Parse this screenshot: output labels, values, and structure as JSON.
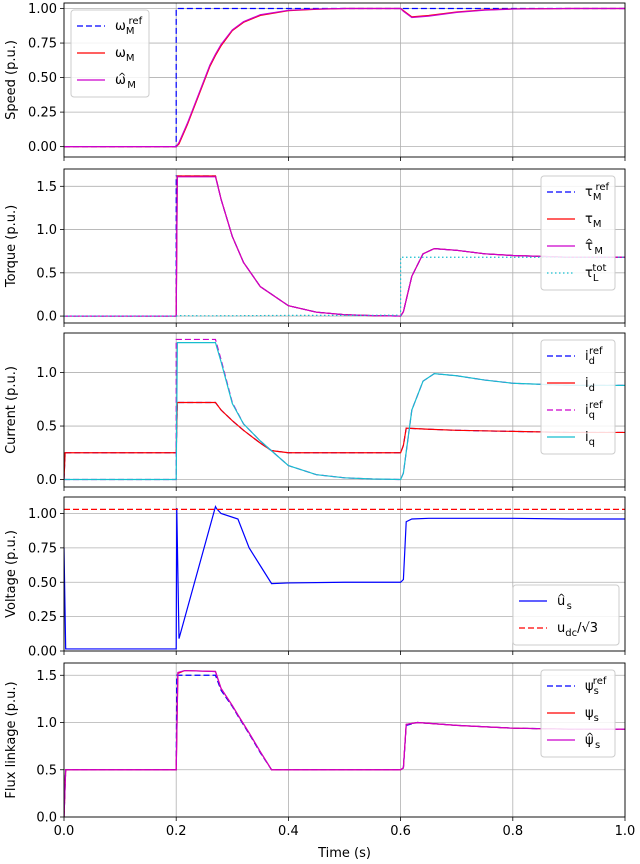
{
  "chart_data": [
    {
      "type": "line",
      "ylabel": "Speed (p.u.)",
      "xlim": [
        0,
        1
      ],
      "ylim": [
        -0.075,
        1.04
      ],
      "yticks": [
        "0.00",
        "0.25",
        "0.50",
        "0.75",
        "1.00"
      ],
      "ytick_values": [
        0,
        0.25,
        0.5,
        0.75,
        1.0
      ],
      "grid": true,
      "legend": "top-left",
      "series": [
        {
          "name": "ω_M^ref",
          "legend_main": "ω",
          "legend_sub": "M",
          "legend_sup": "ref",
          "hat": false,
          "color": "#0000ff",
          "dash": "dashed",
          "x": [
            0,
            0.2,
            0.2,
            1.0
          ],
          "y": [
            0,
            0,
            1,
            1
          ]
        },
        {
          "name": "ω_M",
          "legend_main": "ω",
          "legend_sub": "M",
          "legend_sup": "",
          "hat": false,
          "color": "#ff0000",
          "dash": "solid",
          "x": [
            0,
            0.2,
            0.205,
            0.22,
            0.24,
            0.26,
            0.27,
            0.28,
            0.3,
            0.32,
            0.35,
            0.4,
            0.45,
            0.5,
            0.55,
            0.6,
            0.605,
            0.62,
            0.65,
            0.7,
            0.75,
            0.8,
            0.9,
            1.0
          ],
          "y": [
            0,
            0,
            0.02,
            0.16,
            0.37,
            0.58,
            0.66,
            0.73,
            0.84,
            0.9,
            0.95,
            0.985,
            0.995,
            1.0,
            1.0,
            1.0,
            0.985,
            0.94,
            0.95,
            0.975,
            0.99,
            0.997,
            1.0,
            1.0
          ]
        },
        {
          "name": "ω̂_M",
          "legend_main": "ω",
          "legend_sub": "M",
          "legend_sup": "",
          "hat": true,
          "color": "#cc00cc",
          "dash": "solid",
          "x": [
            0,
            0.2,
            0.205,
            0.22,
            0.24,
            0.26,
            0.27,
            0.28,
            0.3,
            0.32,
            0.35,
            0.4,
            0.45,
            0.5,
            0.55,
            0.6,
            0.605,
            0.62,
            0.65,
            0.7,
            0.75,
            0.8,
            0.9,
            1.0
          ],
          "y": [
            0,
            0,
            0.03,
            0.17,
            0.38,
            0.59,
            0.67,
            0.74,
            0.845,
            0.905,
            0.955,
            0.987,
            0.996,
            1.0,
            1.0,
            1.0,
            0.98,
            0.935,
            0.945,
            0.972,
            0.988,
            0.996,
            1.0,
            1.0
          ]
        }
      ]
    },
    {
      "type": "line",
      "ylabel": "Torque (p.u.)",
      "xlim": [
        0,
        1
      ],
      "ylim": [
        -0.08,
        1.7
      ],
      "yticks": [
        "0.0",
        "0.5",
        "1.0",
        "1.5"
      ],
      "ytick_values": [
        0,
        0.5,
        1.0,
        1.5
      ],
      "grid": true,
      "legend": "top-right",
      "series": [
        {
          "name": "τ_M^ref",
          "legend_main": "τ",
          "legend_sub": "M",
          "legend_sup": "ref",
          "hat": false,
          "color": "#0000ff",
          "dash": "dashed",
          "x": [
            0,
            0.2,
            0.2,
            0.27,
            0.28,
            0.3,
            0.32,
            0.35,
            0.4,
            0.45,
            0.5,
            0.55,
            0.6,
            0.605,
            0.62,
            0.64,
            0.66,
            0.7,
            0.75,
            0.8,
            0.9,
            1.0
          ],
          "y": [
            0,
            0,
            1.62,
            1.62,
            1.35,
            0.92,
            0.62,
            0.34,
            0.12,
            0.045,
            0.016,
            0.005,
            0,
            0.05,
            0.46,
            0.72,
            0.78,
            0.76,
            0.72,
            0.7,
            0.68,
            0.68
          ]
        },
        {
          "name": "τ_M",
          "legend_main": "τ",
          "legend_sub": "M",
          "legend_sup": "",
          "hat": false,
          "color": "#ff0000",
          "dash": "solid",
          "x": [
            0,
            0.2,
            0.202,
            0.27,
            0.28,
            0.3,
            0.32,
            0.35,
            0.4,
            0.45,
            0.5,
            0.55,
            0.6,
            0.605,
            0.62,
            0.64,
            0.66,
            0.7,
            0.75,
            0.8,
            0.9,
            1.0
          ],
          "y": [
            0,
            0,
            1.62,
            1.62,
            1.35,
            0.92,
            0.62,
            0.34,
            0.12,
            0.045,
            0.016,
            0.005,
            0,
            0.05,
            0.46,
            0.72,
            0.78,
            0.76,
            0.72,
            0.7,
            0.68,
            0.68
          ]
        },
        {
          "name": "τ̂_M",
          "legend_main": "τ",
          "legend_sub": "M",
          "legend_sup": "",
          "hat": true,
          "color": "#cc00cc",
          "dash": "solid",
          "x": [
            0,
            0.2,
            0.202,
            0.27,
            0.28,
            0.3,
            0.32,
            0.35,
            0.4,
            0.45,
            0.5,
            0.55,
            0.6,
            0.605,
            0.62,
            0.64,
            0.66,
            0.7,
            0.75,
            0.8,
            0.9,
            1.0
          ],
          "y": [
            0,
            0,
            1.61,
            1.61,
            1.35,
            0.92,
            0.62,
            0.34,
            0.12,
            0.045,
            0.016,
            0.005,
            0,
            0.05,
            0.46,
            0.72,
            0.78,
            0.76,
            0.72,
            0.7,
            0.68,
            0.68
          ]
        },
        {
          "name": "τ_L^tot",
          "legend_main": "τ",
          "legend_sub": "L",
          "legend_sup": "tot",
          "hat": false,
          "color": "#17becf",
          "dash": "dotted",
          "x": [
            0,
            0.2,
            0.205,
            0.25,
            0.3,
            0.4,
            0.5,
            0.6,
            0.6,
            1.0
          ],
          "y": [
            0,
            0,
            0.005,
            0.003,
            0.004,
            0.008,
            0.008,
            0.01,
            0.68,
            0.68
          ]
        }
      ]
    },
    {
      "type": "line",
      "ylabel": "Current (p.u.)",
      "xlim": [
        0,
        1
      ],
      "ylim": [
        -0.07,
        1.37
      ],
      "yticks": [
        "0.0",
        "0.5",
        "1.0"
      ],
      "ytick_values": [
        0,
        0.5,
        1.0
      ],
      "grid": true,
      "legend": "top-right",
      "series": [
        {
          "name": "i_d^ref",
          "legend_main": "i",
          "legend_sub": "d",
          "legend_sup": "ref",
          "hat": false,
          "color": "#0000ff",
          "dash": "dashed",
          "x": [
            0,
            0.002,
            0.2,
            0.202,
            0.27,
            0.28,
            0.3,
            0.32,
            0.35,
            0.37,
            0.4,
            0.5,
            0.6,
            0.605,
            0.61,
            0.65,
            0.7,
            0.8,
            0.9,
            1.0
          ],
          "y": [
            0,
            0.25,
            0.25,
            0.72,
            0.72,
            0.65,
            0.55,
            0.46,
            0.34,
            0.27,
            0.25,
            0.25,
            0.25,
            0.32,
            0.48,
            0.47,
            0.46,
            0.45,
            0.44,
            0.44
          ]
        },
        {
          "name": "i_d",
          "legend_main": "i",
          "legend_sub": "d",
          "legend_sup": "",
          "hat": false,
          "color": "#ff0000",
          "dash": "solid",
          "x": [
            0,
            0.002,
            0.2,
            0.202,
            0.27,
            0.28,
            0.3,
            0.32,
            0.35,
            0.37,
            0.4,
            0.5,
            0.6,
            0.605,
            0.61,
            0.65,
            0.7,
            0.8,
            0.9,
            1.0
          ],
          "y": [
            0,
            0.25,
            0.25,
            0.72,
            0.72,
            0.65,
            0.55,
            0.46,
            0.34,
            0.27,
            0.25,
            0.25,
            0.25,
            0.32,
            0.48,
            0.47,
            0.46,
            0.45,
            0.44,
            0.44
          ]
        },
        {
          "name": "i_q^ref",
          "legend_main": "i",
          "legend_sub": "q",
          "legend_sup": "ref",
          "hat": false,
          "color": "#cc00cc",
          "dash": "dashed",
          "x": [
            0,
            0.2,
            0.2,
            0.27,
            0.28,
            0.3,
            0.32,
            0.35,
            0.4,
            0.45,
            0.5,
            0.55,
            0.6,
            0.605,
            0.62,
            0.64,
            0.66,
            0.7,
            0.75,
            0.8,
            0.9,
            1.0
          ],
          "y": [
            0,
            0,
            1.31,
            1.31,
            1.12,
            0.72,
            0.52,
            0.36,
            0.13,
            0.045,
            0.016,
            0.005,
            0,
            0.06,
            0.65,
            0.92,
            0.99,
            0.97,
            0.93,
            0.9,
            0.88,
            0.88
          ]
        },
        {
          "name": "i_q",
          "legend_main": "i",
          "legend_sub": "q",
          "legend_sup": "",
          "hat": false,
          "color": "#17becf",
          "dash": "solid",
          "x": [
            0,
            0.2,
            0.202,
            0.27,
            0.28,
            0.3,
            0.32,
            0.35,
            0.4,
            0.45,
            0.5,
            0.55,
            0.6,
            0.605,
            0.62,
            0.64,
            0.66,
            0.7,
            0.75,
            0.8,
            0.9,
            1.0
          ],
          "y": [
            0,
            0,
            1.28,
            1.28,
            1.1,
            0.71,
            0.52,
            0.36,
            0.13,
            0.045,
            0.016,
            0.005,
            0,
            0.06,
            0.65,
            0.92,
            0.99,
            0.97,
            0.93,
            0.9,
            0.88,
            0.88
          ]
        }
      ]
    },
    {
      "type": "line",
      "ylabel": "Voltage (p.u.)",
      "xlim": [
        0,
        1
      ],
      "ylim": [
        0,
        1.12
      ],
      "yticks": [
        "0.00",
        "0.25",
        "0.50",
        "0.75",
        "1.00"
      ],
      "ytick_values": [
        0,
        0.25,
        0.5,
        0.75,
        1.0
      ],
      "grid": true,
      "legend": "bottom-right",
      "series": [
        {
          "name": "û_s",
          "legend_main": "u",
          "legend_sub": "s",
          "legend_sup": "",
          "hat": true,
          "color": "#0000ff",
          "dash": "solid",
          "x": [
            0,
            0.003,
            0.2,
            0.201,
            0.205,
            0.27,
            0.272,
            0.28,
            0.31,
            0.33,
            0.35,
            0.37,
            0.4,
            0.5,
            0.6,
            0.605,
            0.61,
            0.62,
            0.65,
            0.7,
            0.8,
            0.9,
            1.0
          ],
          "y": [
            0.75,
            0.015,
            0.015,
            1.04,
            0.09,
            1.05,
            1.035,
            1.0,
            0.96,
            0.75,
            0.62,
            0.49,
            0.495,
            0.5,
            0.5,
            0.52,
            0.94,
            0.96,
            0.965,
            0.965,
            0.965,
            0.96,
            0.96
          ]
        },
        {
          "name": "u_dc/√3",
          "legend_main": "u",
          "legend_sub": "dc",
          "legend_sup": "",
          "legend_suffix": "/√3",
          "hat": false,
          "color": "#ff0000",
          "dash": "dashed",
          "x": [
            0,
            1.0
          ],
          "y": [
            1.03,
            1.03
          ]
        }
      ]
    },
    {
      "type": "line",
      "ylabel": "Flux linkage (p.u.)",
      "xlabel": "Time (s)",
      "xlim": [
        0,
        1
      ],
      "ylim": [
        0,
        1.63
      ],
      "yticks": [
        "0.0",
        "0.5",
        "1.0",
        "1.5"
      ],
      "ytick_values": [
        0,
        0.5,
        1.0,
        1.5
      ],
      "xticks": [
        "0.0",
        "0.2",
        "0.4",
        "0.6",
        "0.8",
        "1.0"
      ],
      "xtick_values": [
        0,
        0.2,
        0.4,
        0.6,
        0.8,
        1.0
      ],
      "grid": true,
      "legend": "top-right",
      "series": [
        {
          "name": "ψ_s^ref",
          "legend_main": "ψ",
          "legend_sub": "s",
          "legend_sup": "ref",
          "hat": false,
          "color": "#0000ff",
          "dash": "dashed",
          "x": [
            0,
            0.003,
            0.2,
            0.201,
            0.27,
            0.28,
            0.3,
            0.31,
            0.33,
            0.35,
            0.37,
            0.4,
            0.5,
            0.6,
            0.605,
            0.61,
            0.63,
            0.7,
            0.8,
            0.9,
            1.0
          ],
          "y": [
            0,
            0.5,
            0.5,
            1.5,
            1.5,
            1.34,
            1.17,
            1.07,
            0.88,
            0.68,
            0.5,
            0.5,
            0.5,
            0.5,
            0.52,
            0.97,
            1.0,
            0.97,
            0.94,
            0.93,
            0.93
          ]
        },
        {
          "name": "ψ_s",
          "legend_main": "ψ",
          "legend_sub": "s",
          "legend_sup": "",
          "hat": false,
          "color": "#ff0000",
          "dash": "solid",
          "x": [
            0,
            0.003,
            0.2,
            0.203,
            0.215,
            0.27,
            0.28,
            0.3,
            0.31,
            0.33,
            0.35,
            0.37,
            0.4,
            0.5,
            0.6,
            0.605,
            0.61,
            0.63,
            0.7,
            0.8,
            0.9,
            1.0
          ],
          "y": [
            0,
            0.5,
            0.5,
            1.52,
            1.55,
            1.54,
            1.36,
            1.18,
            1.08,
            0.89,
            0.69,
            0.5,
            0.5,
            0.5,
            0.5,
            0.52,
            0.98,
            1.0,
            0.97,
            0.94,
            0.93,
            0.93
          ]
        },
        {
          "name": "ψ̂_s",
          "legend_main": "ψ",
          "legend_sub": "s",
          "legend_sup": "",
          "hat": true,
          "color": "#cc00cc",
          "dash": "solid",
          "x": [
            0,
            0.003,
            0.2,
            0.203,
            0.215,
            0.27,
            0.28,
            0.3,
            0.31,
            0.33,
            0.35,
            0.37,
            0.4,
            0.5,
            0.6,
            0.605,
            0.61,
            0.63,
            0.7,
            0.8,
            0.9,
            1.0
          ],
          "y": [
            0,
            0.5,
            0.5,
            1.53,
            1.55,
            1.54,
            1.36,
            1.18,
            1.08,
            0.89,
            0.69,
            0.5,
            0.5,
            0.5,
            0.5,
            0.52,
            0.98,
            1.0,
            0.97,
            0.94,
            0.93,
            0.93
          ]
        }
      ]
    }
  ]
}
